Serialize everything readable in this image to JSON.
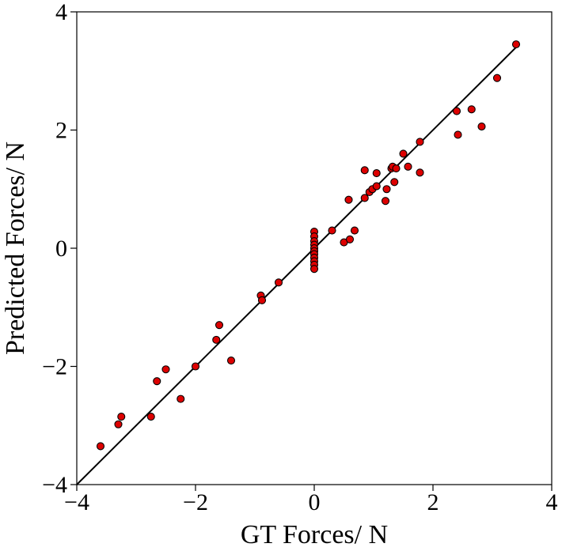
{
  "chart_data": {
    "type": "scatter",
    "xlabel": "GT Forces/ N",
    "ylabel": "Predicted Forces/ N",
    "xlim": [
      -4,
      4
    ],
    "ylim": [
      -4,
      4
    ],
    "x_ticks": [
      -4,
      -2,
      0,
      2,
      4
    ],
    "y_ticks": [
      -4,
      -2,
      0,
      2,
      4
    ],
    "x_tick_labels": [
      "−4",
      "−2",
      "0",
      "2",
      "4"
    ],
    "y_tick_labels": [
      "−4",
      "−2",
      "0",
      "2",
      "4"
    ],
    "grid": false,
    "reference_line": {
      "x": [
        -4,
        3.4
      ],
      "y": [
        -4,
        3.4
      ]
    },
    "marker_color": "#dd0000",
    "marker_edge_color": "#000000",
    "points": [
      [
        -3.6,
        -3.35
      ],
      [
        -3.25,
        -2.85
      ],
      [
        -3.3,
        -2.98
      ],
      [
        -2.75,
        -2.85
      ],
      [
        -2.65,
        -2.25
      ],
      [
        -2.5,
        -2.05
      ],
      [
        -2.25,
        -2.55
      ],
      [
        -2.0,
        -2.0
      ],
      [
        -1.65,
        -1.55
      ],
      [
        -1.6,
        -1.3
      ],
      [
        -1.4,
        -1.9
      ],
      [
        -0.9,
        -0.8
      ],
      [
        -0.88,
        -0.88
      ],
      [
        -0.6,
        -0.58
      ],
      [
        0.0,
        0.28
      ],
      [
        0.0,
        0.2
      ],
      [
        0.0,
        0.12
      ],
      [
        0.0,
        0.06
      ],
      [
        0.0,
        0.0
      ],
      [
        0.0,
        -0.05
      ],
      [
        0.0,
        -0.1
      ],
      [
        0.0,
        -0.16
      ],
      [
        0.0,
        -0.22
      ],
      [
        0.0,
        -0.28
      ],
      [
        0.0,
        -0.35
      ],
      [
        0.3,
        0.3
      ],
      [
        0.5,
        0.1
      ],
      [
        0.6,
        0.15
      ],
      [
        0.68,
        0.3
      ],
      [
        0.58,
        0.82
      ],
      [
        0.85,
        1.32
      ],
      [
        0.85,
        0.85
      ],
      [
        0.93,
        0.95
      ],
      [
        0.98,
        1.0
      ],
      [
        1.05,
        1.05
      ],
      [
        1.05,
        1.27
      ],
      [
        1.2,
        0.8
      ],
      [
        1.22,
        1.0
      ],
      [
        1.3,
        1.35
      ],
      [
        1.32,
        1.38
      ],
      [
        1.35,
        1.12
      ],
      [
        1.38,
        1.35
      ],
      [
        1.5,
        1.6
      ],
      [
        1.58,
        1.38
      ],
      [
        1.78,
        1.8
      ],
      [
        1.78,
        1.28
      ],
      [
        2.4,
        2.32
      ],
      [
        2.42,
        1.92
      ],
      [
        2.65,
        2.35
      ],
      [
        2.82,
        2.06
      ],
      [
        3.08,
        2.88
      ],
      [
        3.4,
        3.45
      ]
    ]
  }
}
